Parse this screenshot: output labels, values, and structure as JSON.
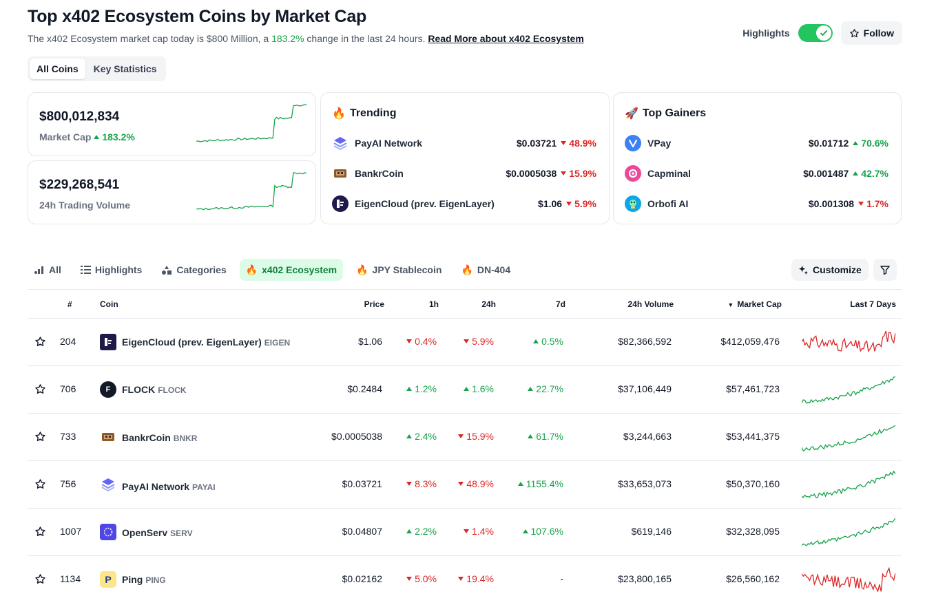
{
  "header": {
    "title": "Top x402 Ecosystem Coins by Market Cap",
    "subtitle_pre": "The x402 Ecosystem market cap today is $800 Million, a ",
    "subtitle_change": "183.2%",
    "subtitle_post": " change in the last 24 hours. ",
    "read_more": "Read More about x402 Ecosystem",
    "highlights_label": "Highlights",
    "follow_label": "Follow"
  },
  "view_tabs": {
    "all_coins": "All Coins",
    "key_statistics": "Key Statistics"
  },
  "market_cap_card": {
    "value": "$800,012,834",
    "label": "Market Cap",
    "change": "183.2%",
    "color": "#16a34a"
  },
  "volume_card": {
    "value": "$229,268,541",
    "label": "24h Trading Volume",
    "color": "#16a34a"
  },
  "trending": {
    "title": "Trending",
    "icon": "fire-icon",
    "items": [
      {
        "name": "PayAI Network",
        "price": "$0.03721",
        "change": "48.9%",
        "dir": "down",
        "icon": "payai-logo"
      },
      {
        "name": "BankrCoin",
        "price": "$0.0005038",
        "change": "15.9%",
        "dir": "down",
        "icon": "bankr-logo"
      },
      {
        "name": "EigenCloud (prev. EigenLayer)",
        "price": "$1.06",
        "change": "5.9%",
        "dir": "down",
        "icon": "eigen-logo"
      }
    ]
  },
  "top_gainers": {
    "title": "Top Gainers",
    "icon": "rocket-icon",
    "items": [
      {
        "name": "VPay",
        "price": "$0.01712",
        "change": "70.6%",
        "dir": "up",
        "icon": "vpay-logo"
      },
      {
        "name": "Capminal",
        "price": "$0.001487",
        "change": "42.7%",
        "dir": "up",
        "icon": "capminal-logo"
      },
      {
        "name": "Orbofi AI",
        "price": "$0.001308",
        "change": "1.7%",
        "dir": "down",
        "icon": "orbofi-logo"
      }
    ]
  },
  "category_tabs": [
    {
      "label": "All",
      "icon": "chart-bars-icon"
    },
    {
      "label": "Highlights",
      "icon": "list-icon"
    },
    {
      "label": "Categories",
      "icon": "shapes-icon"
    },
    {
      "label": "x402 Ecosystem",
      "icon": "fire-icon",
      "active": true
    },
    {
      "label": "JPY Stablecoin",
      "icon": "fire-icon"
    },
    {
      "label": "DN-404",
      "icon": "fire-icon"
    }
  ],
  "toolbar": {
    "customize_label": "Customize"
  },
  "table": {
    "headers": {
      "rank": "#",
      "coin": "Coin",
      "price": "Price",
      "h1": "1h",
      "h24": "24h",
      "d7": "7d",
      "volume": "24h Volume",
      "market_cap": "Market Cap",
      "last7": "Last 7 Days"
    },
    "sort_indicator": "▼",
    "rows": [
      {
        "rank": "204",
        "name": "EigenCloud (prev. EigenLayer)",
        "symbol": "EIGEN",
        "price": "$1.06",
        "h1": "0.4%",
        "h1_dir": "down",
        "h24": "5.9%",
        "h24_dir": "down",
        "d7": "0.5%",
        "d7_dir": "up",
        "volume": "$82,366,592",
        "market_cap": "$412,059,476",
        "trend": "down",
        "icon": "eigen-logo"
      },
      {
        "rank": "706",
        "name": "FLOCK",
        "symbol": "FLOCK",
        "price": "$0.2484",
        "h1": "1.2%",
        "h1_dir": "up",
        "h24": "1.6%",
        "h24_dir": "up",
        "d7": "22.7%",
        "d7_dir": "up",
        "volume": "$37,106,449",
        "market_cap": "$57,461,723",
        "trend": "up",
        "icon": "flock-logo"
      },
      {
        "rank": "733",
        "name": "BankrCoin",
        "symbol": "BNKR",
        "price": "$0.0005038",
        "h1": "2.4%",
        "h1_dir": "up",
        "h24": "15.9%",
        "h24_dir": "down",
        "d7": "61.7%",
        "d7_dir": "up",
        "volume": "$3,244,663",
        "market_cap": "$53,441,375",
        "trend": "up",
        "icon": "bankr-logo"
      },
      {
        "rank": "756",
        "name": "PayAI Network",
        "symbol": "PAYAI",
        "price": "$0.03721",
        "h1": "8.3%",
        "h1_dir": "down",
        "h24": "48.9%",
        "h24_dir": "down",
        "d7": "1155.4%",
        "d7_dir": "up",
        "volume": "$33,653,073",
        "market_cap": "$50,370,160",
        "trend": "up",
        "icon": "payai-logo"
      },
      {
        "rank": "1007",
        "name": "OpenServ",
        "symbol": "SERV",
        "price": "$0.04807",
        "h1": "2.2%",
        "h1_dir": "up",
        "h24": "1.4%",
        "h24_dir": "down",
        "d7": "107.6%",
        "d7_dir": "up",
        "volume": "$619,146",
        "market_cap": "$32,328,095",
        "trend": "up",
        "icon": "openserv-logo"
      },
      {
        "rank": "1134",
        "name": "Ping",
        "symbol": "PING",
        "price": "$0.02162",
        "h1": "5.0%",
        "h1_dir": "down",
        "h24": "19.4%",
        "h24_dir": "down",
        "d7": "-",
        "d7_dir": "none",
        "volume": "$23,800,165",
        "market_cap": "$26,560,162",
        "trend": "down",
        "icon": "ping-logo"
      }
    ]
  },
  "colors": {
    "up": "#16a34a",
    "down": "#dc2626",
    "accent_green": "#22c55e",
    "tab_active_bg": "#dcfce7"
  }
}
